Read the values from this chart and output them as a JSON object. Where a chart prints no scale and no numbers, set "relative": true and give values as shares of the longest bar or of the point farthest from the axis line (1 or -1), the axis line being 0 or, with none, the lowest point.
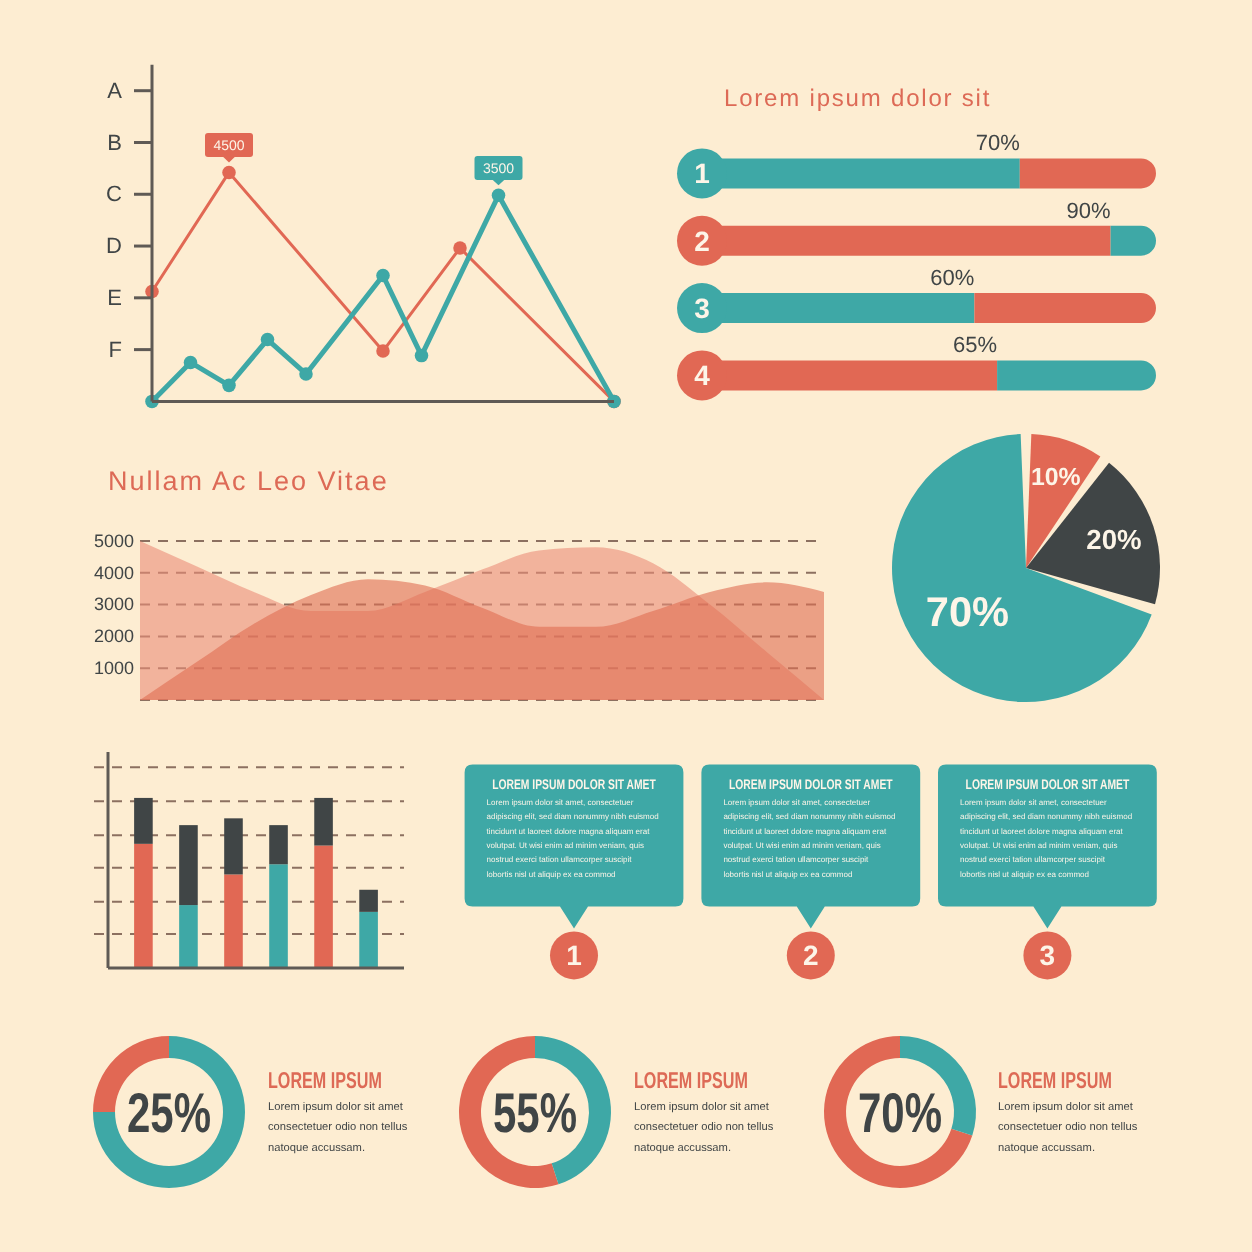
{
  "chart_data": [
    {
      "type": "line",
      "relative": true,
      "categories": [
        null,
        null,
        null,
        null,
        null,
        null,
        null,
        null,
        null,
        null,
        null,
        null,
        null
      ],
      "marker": "circle",
      "series": [
        {
          "color": "#e16854",
          "values": [
            0.48,
            null,
            1,
            null,
            null,
            null,
            0.22,
            null,
            0.67,
            null,
            null,
            null,
            0
          ]
        },
        {
          "color": "#3ea8a6",
          "values": [
            0,
            0.17,
            0.07,
            0.27,
            0.12,
            null,
            0.55,
            0.2,
            null,
            0.9,
            null,
            null,
            0
          ]
        }
      ],
      "annotations": [
        "A",
        "B",
        "C",
        "D",
        "E",
        "F",
        {
          "text": "4500",
          "y": 1
        },
        {
          "text": "3500",
          "y": 0.9
        }
      ]
    },
    {
      "type": "bar",
      "orientation": "horizontal",
      "stacked": true,
      "title": "Lorem ipsum dolor sit",
      "categories": [
        "1",
        "2",
        "3",
        "4"
      ],
      "xlim": [
        0,
        100
      ],
      "tick_labels": "y",
      "series": [
        {
          "colors": [
            "#3ea8a6",
            "#e16854",
            "#3ea8a6",
            "#e16854"
          ],
          "values": [
            70,
            90,
            60,
            65
          ],
          "value_labels": [
            "70%",
            "90%",
            "60%",
            "65%"
          ]
        },
        {
          "colors": [
            "#e16854",
            "#3ea8a6",
            "#e16854",
            "#3ea8a6"
          ],
          "values": [
            30,
            10,
            40,
            35
          ]
        }
      ]
    },
    {
      "type": "area",
      "title": "Nullam Ac Leo Vitae",
      "categories": [
        null,
        null,
        null,
        null,
        null,
        null,
        null,
        null,
        null,
        null,
        null,
        null,
        null
      ],
      "ylim": [
        0,
        5000
      ],
      "yticks": [
        {
          "value": 0,
          "label": null
        },
        1000,
        2000,
        3000,
        4000,
        5000
      ],
      "grid": "y",
      "tick_labels": "y",
      "series": [
        {
          "color": "#eb8c78",
          "values": [
            5000,
            4200,
            3400,
            2800,
            2800,
            3400,
            4100,
            4700,
            4800,
            4300,
            3000,
            1500,
            0
          ]
        },
        {
          "color": "#df6d52",
          "values": [
            0,
            1200,
            2400,
            3300,
            3800,
            3600,
            2900,
            2300,
            2300,
            2800,
            3400,
            3700,
            3400
          ]
        }
      ]
    },
    {
      "type": "pie",
      "categories": [
        null,
        null,
        null
      ],
      "values": [
        10,
        20,
        70
      ],
      "colors": [
        "#e16854",
        "#404546",
        "#3ea8a6"
      ],
      "value_labels": [
        "10%",
        "20%",
        "70%"
      ]
    },
    {
      "type": "bar",
      "stacked": true,
      "relative": true,
      "categories": [
        null,
        null,
        null,
        null,
        null,
        null
      ],
      "series": [
        {
          "colors": [
            "#e16854",
            "#3ea8a6",
            "#e16854",
            "#3ea8a6",
            "#e16854",
            "#3ea8a6"
          ],
          "values": [
            0.73,
            0.37,
            0.55,
            0.61,
            0.72,
            0.33
          ]
        },
        {
          "color": "#404546",
          "values": [
            0.27,
            0.47,
            0.33,
            0.23,
            0.28,
            0.13
          ]
        }
      ],
      "ref_lines": [
        {
          "axis": "y",
          "value": 0.2,
          "color": "#8c7060",
          "line_style": "dashed"
        },
        {
          "axis": "y",
          "value": 0.39,
          "color": "#8c7060",
          "line_style": "dashed"
        },
        {
          "axis": "y",
          "value": 0.59,
          "color": "#8c7060",
          "line_style": "dashed"
        },
        {
          "axis": "y",
          "value": 0.78,
          "color": "#8c7060",
          "line_style": "dashed"
        },
        {
          "axis": "y",
          "value": 0.98,
          "color": "#8c7060",
          "line_style": "dashed"
        },
        {
          "axis": "y",
          "value": 1.18,
          "color": "#8c7060",
          "line_style": "dashed"
        }
      ]
    },
    {
      "type": "other",
      "annotations": [
        "LOREM IPSUM DOLOR SIT AMET",
        "Lorem ipsum dolor sit amet, consectetuer\nadipiscing elit, sed diam nonummy nibh euismod\ntincidunt ut laoreet dolore magna aliquam erat\nvolutpat. Ut wisi enim ad minim veniam, quis\nnostrud exerci tation ullamcorper suscipit\nlobortis nisl ut aliquip ex ea commod",
        "1",
        "LOREM IPSUM DOLOR SIT AMET",
        "Lorem ipsum dolor sit amet, consectetuer\nadipiscing elit, sed diam nonummy nibh euismod\ntincidunt ut laoreet dolore magna aliquam erat\nvolutpat. Ut wisi enim ad minim veniam, quis\nnostrud exerci tation ullamcorper suscipit\nlobortis nisl ut aliquip ex ea commod",
        "2",
        "LOREM IPSUM DOLOR SIT AMET",
        "Lorem ipsum dolor sit amet, consectetuer\nadipiscing elit, sed diam nonummy nibh euismod\ntincidunt ut laoreet dolore magna aliquam erat\nvolutpat. Ut wisi enim ad minim veniam, quis\nnostrud exerci tation ullamcorper suscipit\nlobortis nisl ut aliquip ex ea commod",
        "3"
      ]
    },
    {
      "type": "donut",
      "title": "LOREM IPSUM",
      "categories": [
        null,
        null
      ],
      "values": [
        25,
        75
      ],
      "colors": [
        "#e16854",
        "#3ea8a6"
      ],
      "annotations": [
        "25%",
        "Lorem ipsum dolor sit amet\nconsectetuer odio non tellus\nnatoque accussam."
      ]
    },
    {
      "type": "donut",
      "title": "LOREM IPSUM",
      "categories": [
        null,
        null
      ],
      "values": [
        55,
        45
      ],
      "colors": [
        "#e16854",
        "#3ea8a6"
      ],
      "annotations": [
        "55%",
        "Lorem ipsum dolor sit amet\nconsectetuer odio non tellus\nnatoque accussam."
      ]
    },
    {
      "type": "donut",
      "title": "LOREM IPSUM",
      "categories": [
        null,
        null
      ],
      "values": [
        70,
        30
      ],
      "colors": [
        "#e16854",
        "#3ea8a6"
      ],
      "annotations": [
        "70%",
        "Lorem ipsum dolor sit amet\nconsectetuer odio non tellus\nnatoque accussam."
      ]
    }
  ]
}
